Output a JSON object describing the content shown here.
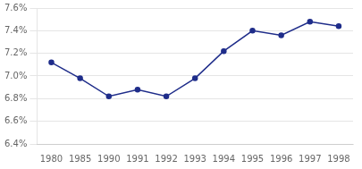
{
  "chart_data": {
    "type": "line",
    "categories": [
      "1980",
      "1985",
      "1990",
      "1991",
      "1992",
      "1993",
      "1994",
      "1995",
      "1996",
      "1997",
      "1998"
    ],
    "values": [
      0.0712,
      0.0698,
      0.0682,
      0.0688,
      0.0682,
      0.0698,
      0.0722,
      0.074,
      0.0736,
      0.0748,
      0.0744
    ],
    "color": "#1F2D8A",
    "marker": "circle",
    "ylim": [
      0.064,
      0.076
    ],
    "yticks": [
      {
        "value": 0.064,
        "label": "6.4%"
      },
      {
        "value": 0.066,
        "label": "6.6%"
      },
      {
        "value": 0.068,
        "label": "6.8%"
      },
      {
        "value": 0.07,
        "label": "7.0%"
      },
      {
        "value": 0.072,
        "label": "7.2%"
      },
      {
        "value": 0.074,
        "label": "7.4%"
      },
      {
        "value": 0.076,
        "label": "7.6%"
      }
    ],
    "grid": "y"
  }
}
